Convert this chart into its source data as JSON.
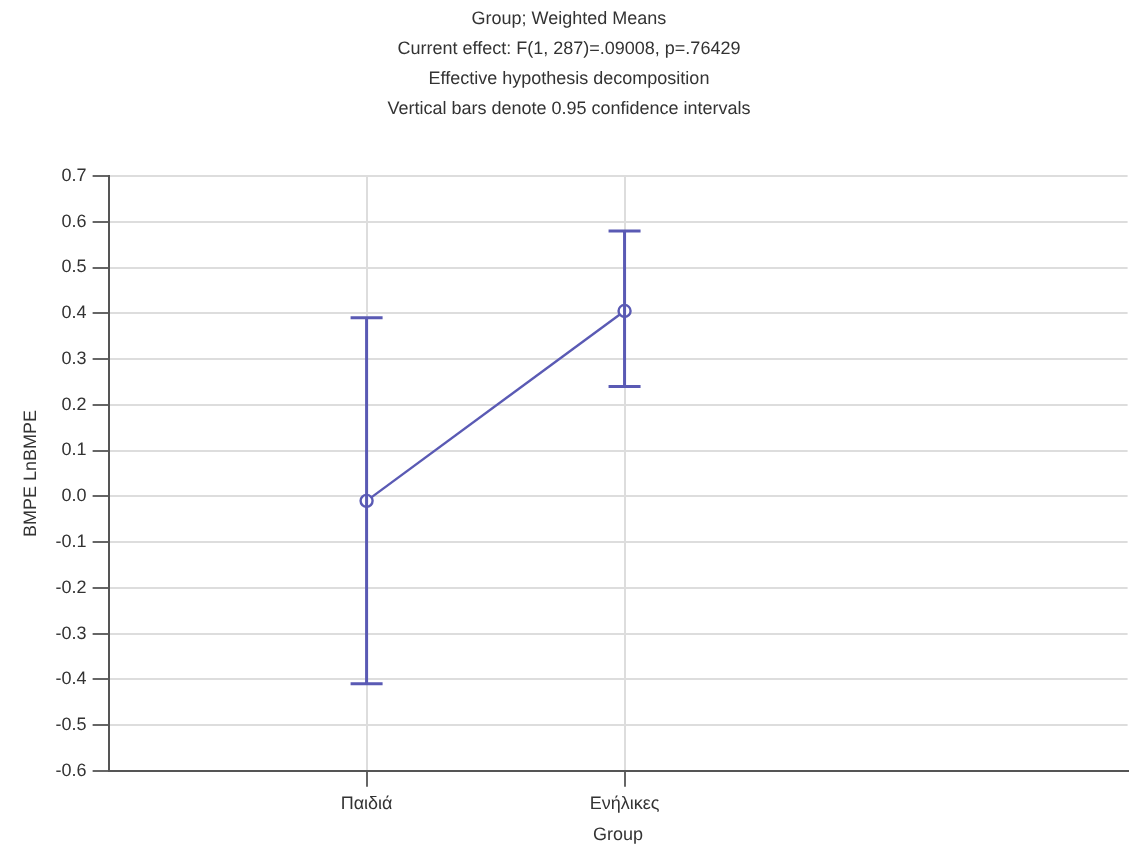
{
  "chart_data": {
    "type": "line",
    "title": "Group; Weighted Means",
    "subtitle": "Current effect: F(1, 287)=.09008, p=.76429",
    "annotations": [
      "Effective hypothesis decomposition",
      "Vertical bars denote 0.95 confidence intervals"
    ],
    "xlabel": "Group",
    "ylabel": "BMPE LnBMPE",
    "categories": [
      "Παιδιά",
      "Ενήλικες"
    ],
    "series": [
      {
        "color": "#5a5ab4",
        "values": [
          -0.01,
          0.405
        ],
        "errors": [
          [
            -0.41,
            0.39
          ],
          [
            0.24,
            0.58
          ]
        ]
      }
    ],
    "ylim": [
      -0.6,
      0.7
    ],
    "yticks": [
      -0.6,
      -0.5,
      -0.4,
      -0.3,
      -0.2,
      -0.1,
      {
        "value": 0,
        "label": "0.0"
      },
      0.1,
      0.2,
      0.3,
      0.4,
      0.5,
      0.6,
      0.7
    ],
    "grid": true,
    "marker": "circle",
    "line_style": "solid",
    "legend": false
  }
}
